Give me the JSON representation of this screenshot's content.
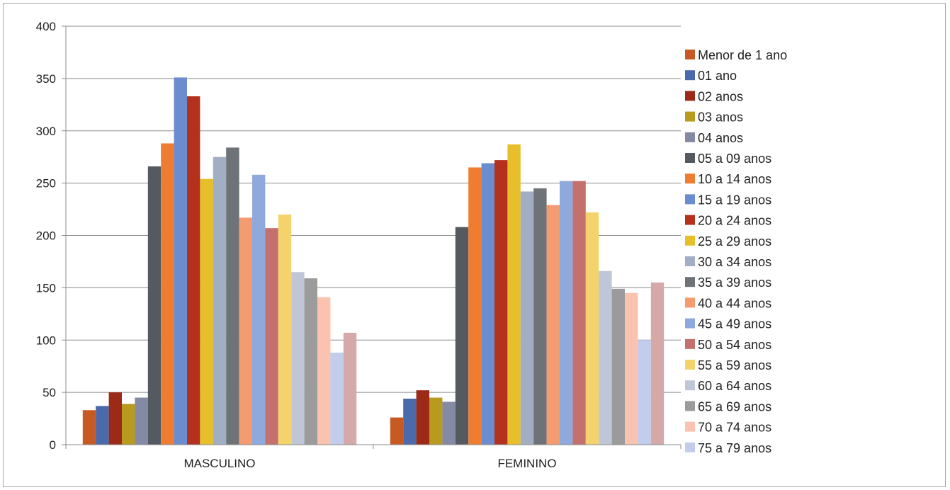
{
  "chart_data": {
    "type": "bar",
    "title": "",
    "xlabel": "",
    "ylabel": "",
    "ylim": [
      0,
      400
    ],
    "yticks": [
      0,
      50,
      100,
      150,
      200,
      250,
      300,
      350,
      400
    ],
    "grid": true,
    "legend_position": "right",
    "categories": [
      "MASCULINO",
      "FEMININO"
    ],
    "series": [
      {
        "name": "Menor de 1 ano",
        "color": "#c65a22",
        "values": [
          33,
          26
        ]
      },
      {
        "name": "01 ano",
        "color": "#4a6aab",
        "values": [
          37,
          44
        ]
      },
      {
        "name": "02 anos",
        "color": "#9b2a17",
        "values": [
          50,
          52
        ]
      },
      {
        "name": "03 anos",
        "color": "#b89b1e",
        "values": [
          39,
          45
        ]
      },
      {
        "name": "04 anos",
        "color": "#8489a4",
        "values": [
          45,
          41
        ]
      },
      {
        "name": "05 a 09 anos",
        "color": "#555a60",
        "values": [
          266,
          208
        ]
      },
      {
        "name": "10 a 14 anos",
        "color": "#ee7d31",
        "values": [
          288,
          265
        ]
      },
      {
        "name": "15 a 19 anos",
        "color": "#6b8ccf",
        "values": [
          351,
          269
        ]
      },
      {
        "name": "20 a 24 anos",
        "color": "#b3311d",
        "values": [
          333,
          272
        ]
      },
      {
        "name": "25 a 29 anos",
        "color": "#e6bf2a",
        "values": [
          254,
          287
        ]
      },
      {
        "name": " 30 a 34 anos",
        "color": "#a2aec4",
        "values": [
          275,
          242
        ]
      },
      {
        "name": "35 a 39 anos",
        "color": "#6e7378",
        "values": [
          284,
          245
        ]
      },
      {
        "name": "40 a 44 anos",
        "color": "#f59b70",
        "values": [
          217,
          229
        ]
      },
      {
        "name": "45 a 49 anos",
        "color": "#8fa9dc",
        "values": [
          258,
          252
        ]
      },
      {
        "name": "50 a 54 anos",
        "color": "#c4706c",
        "values": [
          207,
          252
        ]
      },
      {
        "name": "55 a 59 anos",
        "color": "#f5d36c",
        "values": [
          220,
          222
        ]
      },
      {
        "name": "60 a 64 anos",
        "color": "#bfc6d8",
        "values": [
          165,
          166
        ]
      },
      {
        "name": " 65 a 69 anos",
        "color": "#9b9b9b",
        "values": [
          159,
          149
        ]
      },
      {
        "name": "70 a 74 anos",
        "color": "#f9c3b0",
        "values": [
          141,
          145
        ]
      },
      {
        "name": "75 a 79 anos",
        "color": "#c2cdec",
        "values": [
          88,
          100
        ]
      },
      {
        "name": "",
        "color": "#d4a9a7",
        "values": [
          107,
          155
        ]
      }
    ]
  }
}
